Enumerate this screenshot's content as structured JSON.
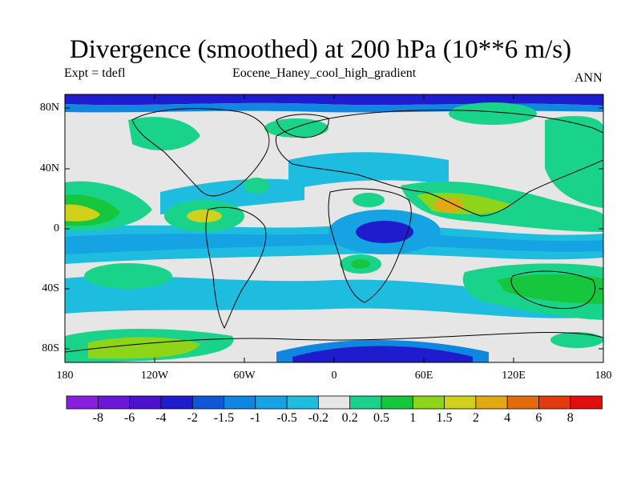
{
  "title": "Divergence (smoothed) at 200 hPa (10**6 m/s)",
  "subtitle_left": "Expt = tdefl",
  "subtitle_center": "Eocene_Haney_cool_high_gradient",
  "subtitle_right": "ANN",
  "lat_labels": [
    "80N",
    "40N",
    "0",
    "40S",
    "80S"
  ],
  "lon_labels": [
    "180",
    "120W",
    "60W",
    "0",
    "60E",
    "120E",
    "180"
  ],
  "colorbar": {
    "labels": [
      "-8",
      "-6",
      "-4",
      "-2",
      "-1.5",
      "-1",
      "-0.5",
      "-0.2",
      "0.2",
      "0.5",
      "1",
      "1.5",
      "2",
      "4",
      "6",
      "8"
    ],
    "colors": [
      "#8a1ee0",
      "#6b16d8",
      "#4a12cf",
      "#1f1ccd",
      "#0e57d9",
      "#0f86e0",
      "#16a3e3",
      "#1ebde0",
      "#e6e6e6",
      "#1ad38a",
      "#16c63c",
      "#8ed418",
      "#cfd11a",
      "#e3a814",
      "#e46a10",
      "#e23a0d",
      "#e20d0d"
    ]
  },
  "field_palette": {
    "background": "#e6e6e6",
    "neg_light": "#1ebde0",
    "neg_mid": "#16a3e3",
    "neg_strong": "#0f86e0",
    "neg_deep": "#1f1ccd",
    "pos_light": "#1ad38a",
    "pos_mid": "#16c63c",
    "pos_strong": "#8ed418",
    "pos_yellow": "#cfd11a",
    "pos_orange": "#e3a814"
  }
}
